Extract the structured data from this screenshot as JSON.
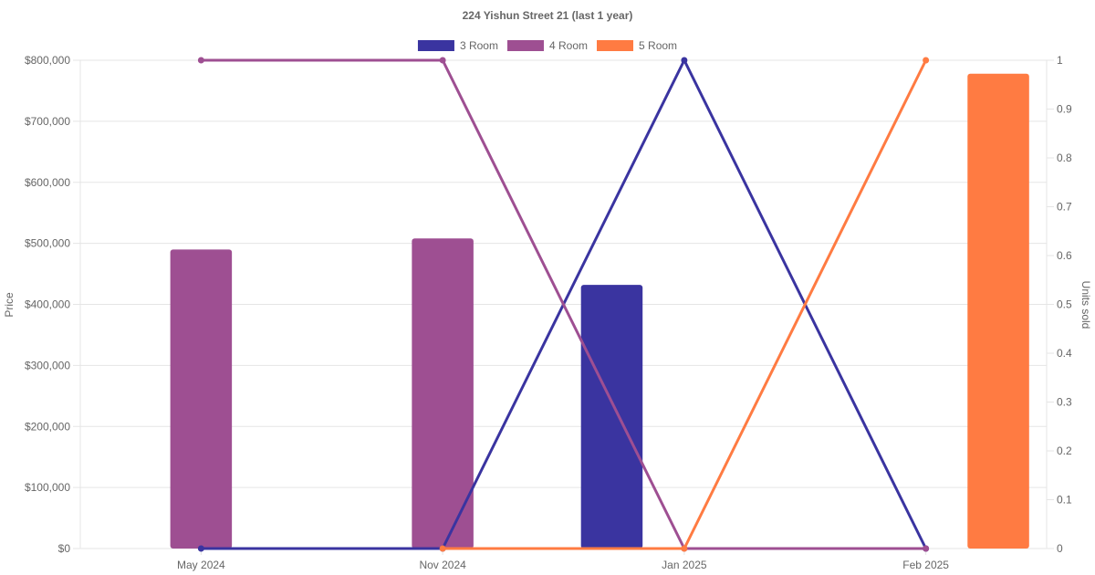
{
  "chart_data": {
    "type": "bar",
    "title": "224 Yishun Street 21 (last 1 year)",
    "categories": [
      "May 2024",
      "Nov 2024",
      "Jan 2025",
      "Feb 2025"
    ],
    "y_left": {
      "label": "Price",
      "min": 0,
      "max": 800000,
      "ticks": [
        "$0",
        "$100,000",
        "$200,000",
        "$300,000",
        "$400,000",
        "$500,000",
        "$600,000",
        "$700,000",
        "$800,000"
      ]
    },
    "y_right": {
      "label": "Units sold",
      "min": 0,
      "max": 1,
      "ticks": [
        "0",
        "0.1",
        "0.2",
        "0.3",
        "0.4",
        "0.5",
        "0.6",
        "0.7",
        "0.8",
        "0.9",
        "1"
      ]
    },
    "grid": true,
    "legend_position": "top",
    "series": [
      {
        "name": "3 Room",
        "color": "#3a34a0",
        "price": [
          null,
          null,
          432000,
          null
        ],
        "units_sold": [
          0,
          0,
          1,
          0
        ]
      },
      {
        "name": "4 Room",
        "color": "#9e4f92",
        "price": [
          490000,
          508000,
          null,
          null
        ],
        "units_sold": [
          1,
          1,
          0,
          0
        ]
      },
      {
        "name": "5 Room",
        "color": "#ff7b42",
        "price": [
          null,
          null,
          null,
          778000
        ],
        "units_sold": [
          null,
          0,
          0,
          1
        ]
      }
    ]
  }
}
